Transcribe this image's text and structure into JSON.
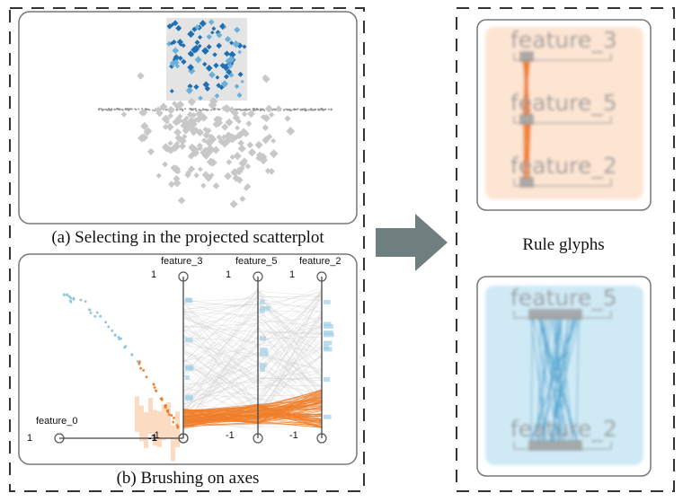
{
  "panel_a": {
    "caption": "(a) Selecting in the projected scatterplot"
  },
  "panel_b": {
    "caption": "(b) Brushing on axes",
    "axes": [
      {
        "label": "feature_0",
        "max": 1,
        "min": -1
      },
      {
        "label": "feature_3",
        "max": 1,
        "min": -1
      },
      {
        "label": "feature_5",
        "max": 1,
        "min": -1
      },
      {
        "label": "feature_2",
        "max": 1,
        "min": -1
      }
    ]
  },
  "rule_glyphs": {
    "title": "Rule glyphs",
    "glyphs": [
      {
        "labels": [
          "feature_3",
          "feature_5",
          "feature_2"
        ]
      },
      {
        "labels": [
          "feature_5",
          "feature_2"
        ]
      }
    ]
  }
}
